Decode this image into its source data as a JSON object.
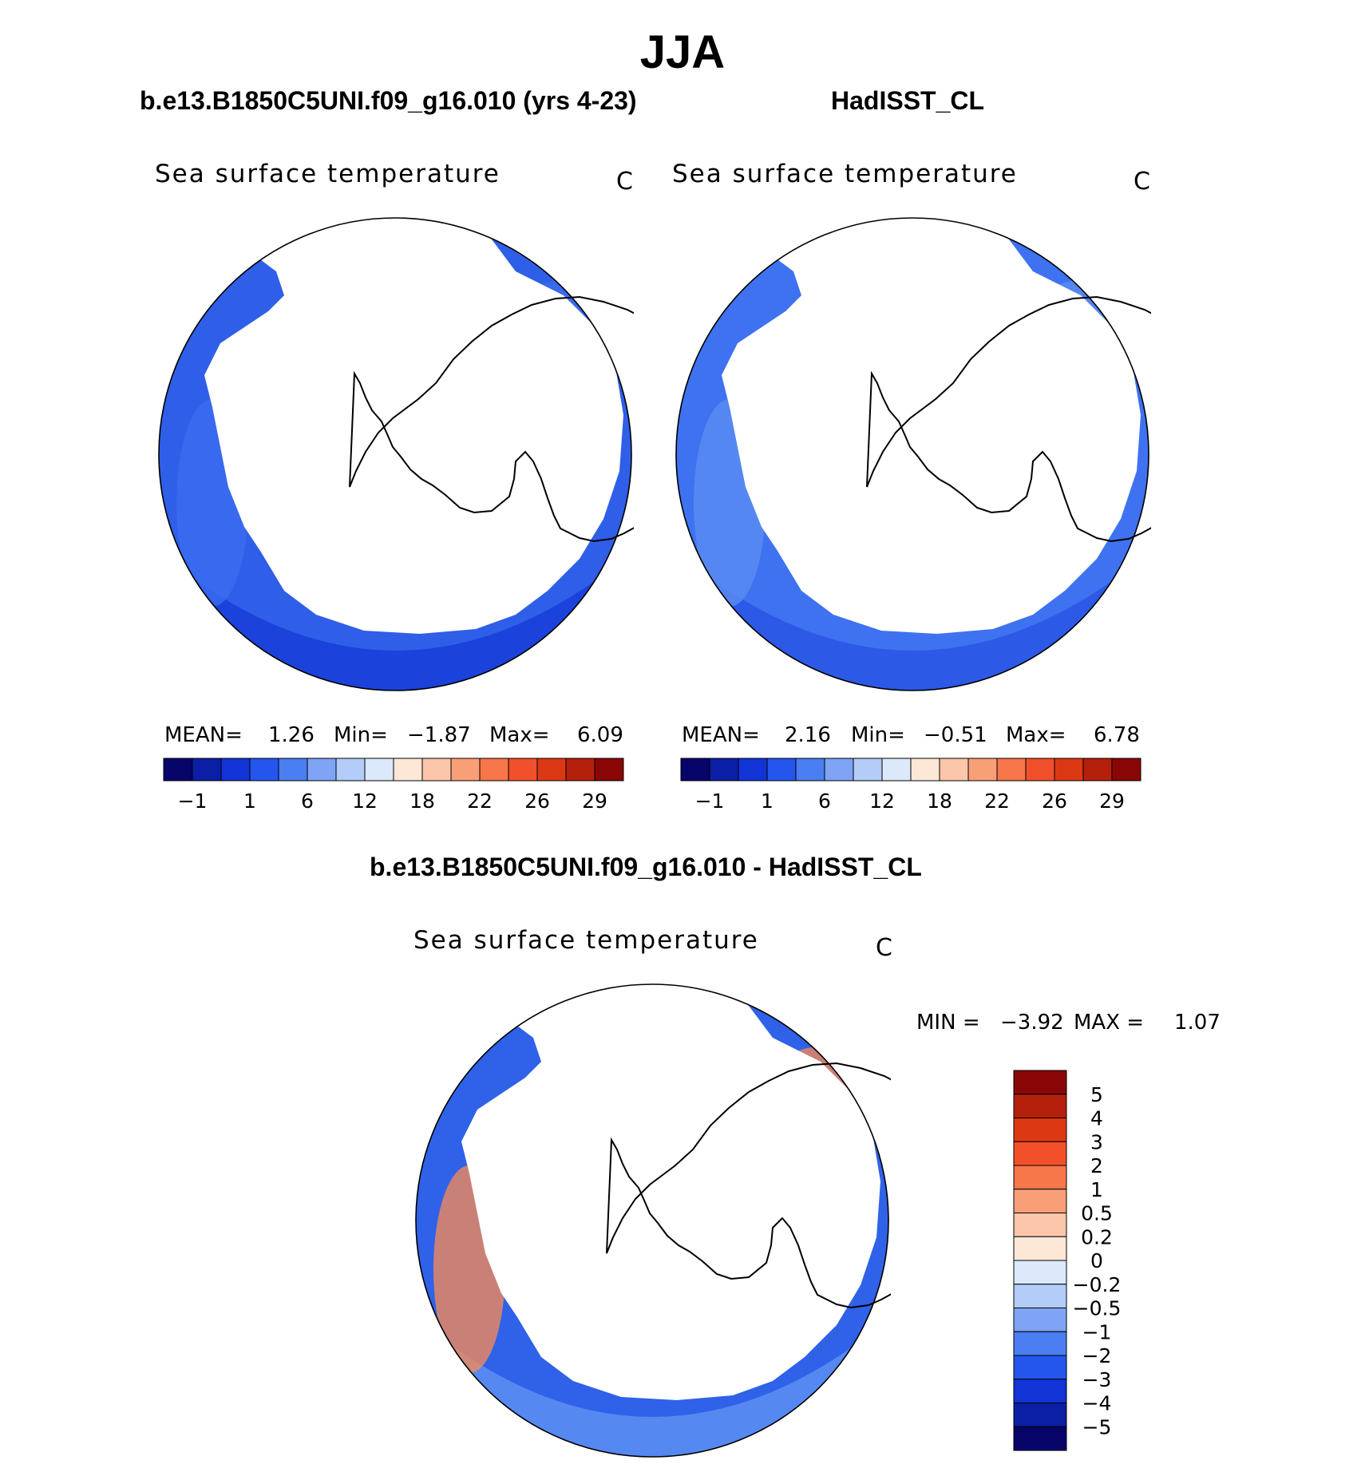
{
  "title": "JJA",
  "panels": [
    {
      "case": "b.e13.B1850C5UNI.f09_g16.010 (yrs 4-23)",
      "variable": "Sea surface temperature",
      "units": "C",
      "mean_label": "MEAN=",
      "mean": "1.26",
      "min_label": "Min=",
      "min": "−1.87",
      "max_label": "Max=",
      "max": "6.09"
    },
    {
      "case": "HadISST_CL",
      "variable": "Sea surface temperature",
      "units": "C",
      "mean_label": "MEAN=",
      "mean": "2.16",
      "min_label": "Min=",
      "min": "−0.51",
      "max_label": "Max=",
      "max": "6.78"
    }
  ],
  "difference": {
    "title": "b.e13.B1850C5UNI.f09_g16.010 - HadISST_CL",
    "variable": "Sea surface temperature",
    "units": "C",
    "min_label": "MIN =",
    "min": "−3.92",
    "max_label": "MAX =",
    "max": "1.07"
  },
  "chart_data": [
    {
      "type": "heatmap",
      "projection": "south polar stereographic",
      "title": "b.e13.B1850C5UNI.f09_g16.010 (yrs 4-23)",
      "variable": "Sea surface temperature",
      "units": "C",
      "mean": 1.26,
      "min": -1.87,
      "max": 6.09,
      "colorbar": {
        "orientation": "horizontal",
        "tick_labels": [
          "−1",
          "1",
          "6",
          "12",
          "18",
          "22",
          "26",
          "29"
        ],
        "colors": [
          "#07046a",
          "#0b1fa6",
          "#1233d6",
          "#2456ee",
          "#4a7ef2",
          "#7fa4f5",
          "#b3ccf8",
          "#dbe9fb",
          "#fde8d8",
          "#fbc6aa",
          "#f99f77",
          "#f7764a",
          "#f2502a",
          "#dd3814",
          "#b5200c",
          "#8a0606"
        ]
      },
      "field_colors": [
        "#2f5fe8",
        "#1a3fd9",
        "#3b6cf0"
      ]
    },
    {
      "type": "heatmap",
      "projection": "south polar stereographic",
      "title": "HadISST_CL",
      "variable": "Sea surface temperature",
      "units": "C",
      "mean": 2.16,
      "min": -0.51,
      "max": 6.78,
      "colorbar": {
        "orientation": "horizontal",
        "tick_labels": [
          "−1",
          "1",
          "6",
          "12",
          "18",
          "22",
          "26",
          "29"
        ],
        "colors": [
          "#07046a",
          "#0b1fa6",
          "#1233d6",
          "#2456ee",
          "#4a7ef2",
          "#7fa4f5",
          "#b3ccf8",
          "#dbe9fb",
          "#fde8d8",
          "#fbc6aa",
          "#f99f77",
          "#f7764a",
          "#f2502a",
          "#dd3814",
          "#b5200c",
          "#8a0606"
        ]
      },
      "field_colors": [
        "#3f72f0",
        "#2b56e6",
        "#5a8cf2"
      ]
    },
    {
      "type": "heatmap",
      "projection": "south polar stereographic",
      "title": "b.e13.B1850C5UNI.f09_g16.010 - HadISST_CL",
      "variable": "Sea surface temperature",
      "units": "C",
      "min": -3.92,
      "max": 1.07,
      "colorbar": {
        "orientation": "vertical",
        "tick_labels": [
          "5",
          "4",
          "3",
          "2",
          "1",
          "0.5",
          "0.2",
          "0",
          "−0.2",
          "−0.5",
          "−1",
          "−2",
          "−3",
          "−4",
          "−5"
        ],
        "colors": [
          "#8a0606",
          "#b5200c",
          "#dd3814",
          "#f2502a",
          "#f7764a",
          "#f99f77",
          "#fbc6aa",
          "#fde8d8",
          "#dbe9fb",
          "#b3ccf8",
          "#7fa4f5",
          "#4a7ef2",
          "#2456ee",
          "#1233d6",
          "#0b1fa6",
          "#07046a"
        ]
      },
      "field_colors": [
        "#2f62e8",
        "#5b8df2",
        "#f08a5a"
      ]
    }
  ]
}
